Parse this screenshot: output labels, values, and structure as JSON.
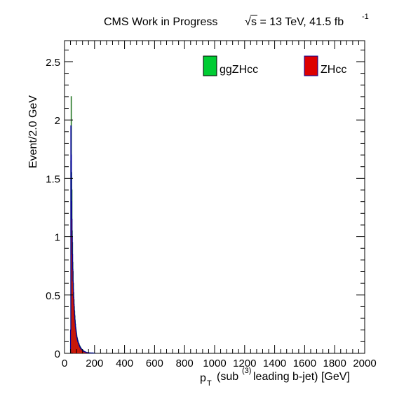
{
  "header": {
    "label": "CMS Work in Progress",
    "sqrt_symbol": "√",
    "energy_text": "s = 13 TeV, 41.5 fb",
    "lumi_exponent": "-1"
  },
  "chart_data": {
    "type": "histogram",
    "xlabel_main": "p",
    "xlabel_sub": "T",
    "xlabel_mid": "(sub",
    "xlabel_sup": "(3)",
    "xlabel_rest": "leading b-jet) [GeV]",
    "ylabel": "Event/2.0 GeV",
    "xlim": [
      0,
      2000
    ],
    "ylim": [
      0,
      2.68
    ],
    "bin_width": 2.0,
    "x_ticks": [
      0,
      200,
      400,
      600,
      800,
      1000,
      1200,
      1400,
      1600,
      1800,
      2000
    ],
    "x_tick_labels": [
      "0",
      "200",
      "400",
      "600",
      "800",
      "1000",
      "1200",
      "1400",
      "1600",
      "1800",
      "2000"
    ],
    "y_ticks": [
      0,
      0.5,
      1,
      1.5,
      2,
      2.5
    ],
    "y_tick_labels": [
      "0",
      "0.5",
      "1",
      "1.5",
      "2",
      "2.5"
    ],
    "legend": {
      "placement": "top-right",
      "entries": [
        {
          "name": "ggZHcc",
          "fill": "#00cc33",
          "edge": "#000000"
        },
        {
          "name": "ZHcc",
          "fill": "#dd0000",
          "edge": "#000099"
        }
      ]
    },
    "series": [
      {
        "name": "ggZHcc",
        "fill": "#00cc33",
        "edge": "#2a7a2a",
        "bins_x_low": [
          40,
          42,
          44,
          46,
          48,
          50,
          52,
          54,
          56,
          58,
          60,
          62,
          64,
          66,
          68,
          70,
          72,
          74,
          76,
          78,
          80,
          82,
          84,
          86,
          88,
          90,
          92,
          94,
          96,
          98,
          100,
          102,
          104,
          106,
          108,
          110,
          112,
          114,
          116,
          118,
          120,
          122,
          124,
          126,
          128,
          130,
          132,
          134,
          136,
          138,
          140,
          142,
          144,
          146,
          148,
          150,
          154,
          158,
          162,
          166,
          170,
          180,
          190,
          200
        ],
        "values": [
          0.15,
          1.65,
          2.2,
          1.55,
          1.4,
          1.05,
          0.95,
          0.78,
          0.7,
          0.6,
          0.52,
          0.46,
          0.4,
          0.36,
          0.32,
          0.28,
          0.25,
          0.22,
          0.2,
          0.18,
          0.16,
          0.14,
          0.13,
          0.12,
          0.11,
          0.1,
          0.09,
          0.085,
          0.08,
          0.07,
          0.065,
          0.06,
          0.055,
          0.05,
          0.045,
          0.04,
          0.038,
          0.035,
          0.032,
          0.03,
          0.028,
          0.025,
          0.022,
          0.02,
          0.018,
          0.016,
          0.015,
          0.013,
          0.012,
          0.011,
          0.01,
          0.009,
          0.008,
          0.008,
          0.007,
          0.006,
          0.005,
          0.005,
          0.004,
          0.004,
          0.003,
          0.003,
          0.002,
          0.002
        ]
      },
      {
        "name": "ZHcc",
        "fill": "#dd0000",
        "edge": "#000099",
        "bins_x_low": [
          40,
          42,
          44,
          46,
          48,
          50,
          52,
          54,
          56,
          58,
          60,
          62,
          64,
          66,
          68,
          70,
          72,
          74,
          76,
          78,
          80,
          82,
          84,
          86,
          88,
          90,
          92,
          94,
          96,
          98,
          100,
          102,
          104,
          106,
          108,
          110,
          112,
          114,
          116,
          118,
          120,
          122,
          124,
          126,
          128,
          130,
          132,
          134,
          136,
          138,
          140,
          142,
          144,
          146,
          148,
          150,
          154,
          158,
          162,
          166,
          170,
          180,
          190,
          200
        ],
        "values": [
          0.2,
          1.95,
          1.7,
          1.3,
          1.15,
          1.0,
          0.85,
          0.72,
          0.62,
          0.55,
          0.48,
          0.42,
          0.37,
          0.33,
          0.29,
          0.26,
          0.23,
          0.21,
          0.19,
          0.17,
          0.15,
          0.135,
          0.12,
          0.11,
          0.1,
          0.095,
          0.085,
          0.08,
          0.072,
          0.065,
          0.06,
          0.055,
          0.05,
          0.046,
          0.042,
          0.038,
          0.035,
          0.032,
          0.03,
          0.028,
          0.025,
          0.023,
          0.021,
          0.019,
          0.017,
          0.015,
          0.014,
          0.013,
          0.012,
          0.011,
          0.01,
          0.009,
          0.008,
          0.008,
          0.007,
          0.006,
          0.005,
          0.005,
          0.004,
          0.004,
          0.003,
          0.003,
          0.002,
          0.002
        ]
      }
    ]
  }
}
